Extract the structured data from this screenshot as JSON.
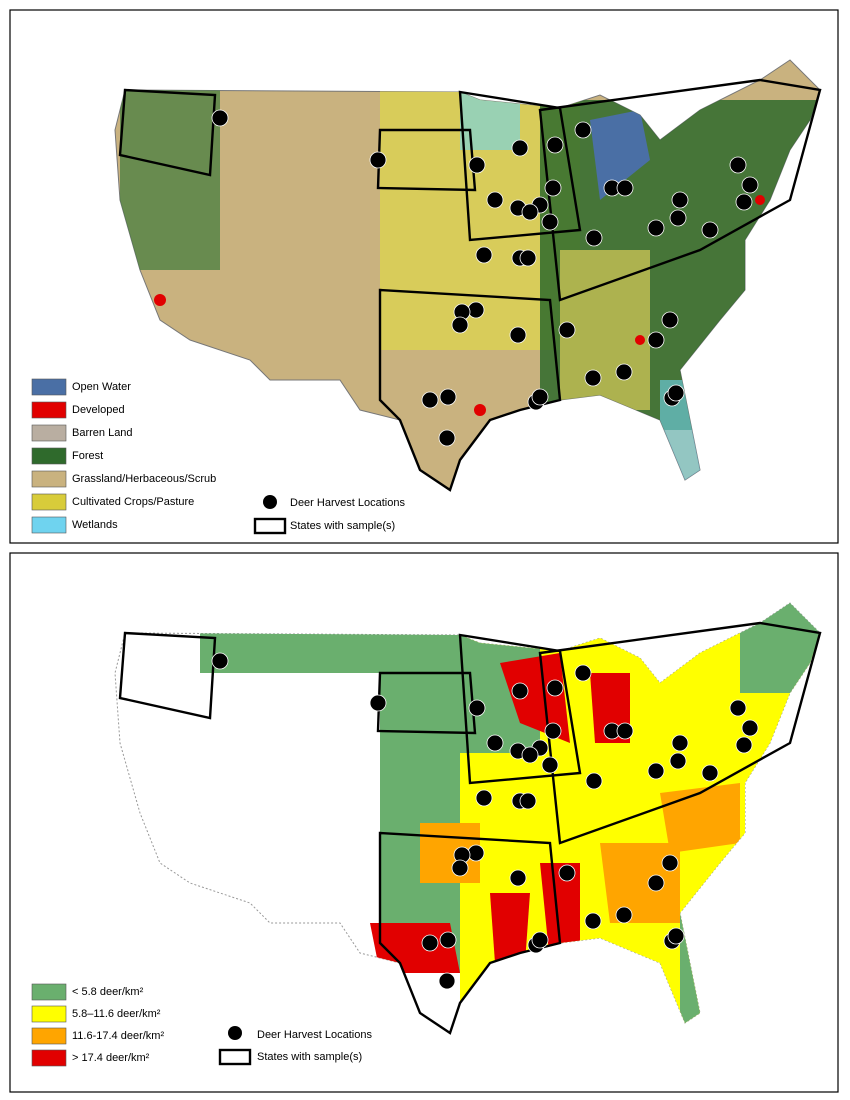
{
  "top_panel": {
    "legend": {
      "land_cover": [
        "Open Water",
        "Developed",
        "Barren Land",
        "Forest",
        "Grassland/Herbaceous/Scrub",
        "Cultivated Crops/Pasture",
        "Wetlands"
      ],
      "markers": [
        "Deer Harvest Locations",
        "States with sample(s)"
      ]
    }
  },
  "bottom_panel": {
    "legend": {
      "density": [
        "< 5.8 deer/km²",
        "5.8–11.6 deer/km²",
        "11.6-17.4 deer/km²",
        "> 17.4 deer/km²"
      ],
      "markers": [
        "Deer Harvest Locations",
        "States with sample(s)"
      ]
    }
  }
}
